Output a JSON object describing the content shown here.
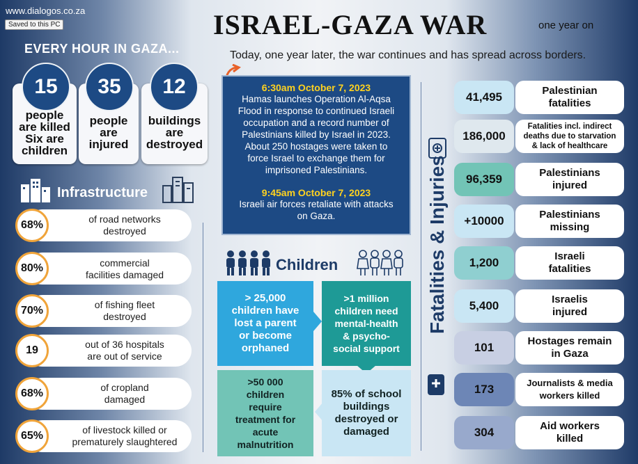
{
  "header": {
    "site_url": "www.dialogos.co.za",
    "saved_label": "Saved to this PC",
    "title": "ISRAEL-GAZA WAR",
    "title_sub": "one year on",
    "tagline": "Today, one year later, the war continues and has spread across borders."
  },
  "every_hour": {
    "heading": "EVERY HOUR IN GAZA...",
    "cards": [
      {
        "number": "15",
        "lines": [
          "people",
          "are killed",
          "Six are",
          "children"
        ]
      },
      {
        "number": "35",
        "lines": [
          "people",
          "are",
          "injured"
        ]
      },
      {
        "number": "12",
        "lines": [
          "buildings",
          "are",
          "destroyed"
        ]
      }
    ]
  },
  "infrastructure": {
    "heading": "Infrastructure",
    "items": [
      {
        "value": "68%",
        "lines": [
          "of road networks",
          "destroyed"
        ]
      },
      {
        "value": "80%",
        "lines": [
          "commercial",
          "facilities damaged"
        ]
      },
      {
        "value": "70%",
        "lines": [
          "of fishing fleet",
          "destroyed"
        ]
      },
      {
        "value": "19",
        "lines": [
          "out of 36 hospitals",
          "are out of service"
        ]
      },
      {
        "value": "68%",
        "lines": [
          "of cropland",
          "damaged"
        ]
      },
      {
        "value": "65%",
        "lines": [
          "of livestock killed or",
          "prematurely slaughtered"
        ]
      }
    ]
  },
  "timeline": {
    "event1_time": "6:30am October 7, 2023",
    "event1_lines": [
      "Hamas launches Operation Al-Aqsa",
      "Flood in response to continued Israeli",
      "occupation and a record number of",
      "Palestinians killed by Israel in 2023.",
      "About 250 hostages were taken to",
      "force Israel to exchange them for",
      "imprisoned Palestinians."
    ],
    "event2_time": "9:45am October 7, 2023",
    "event2_lines": [
      "Israeli air forces retaliate with attacks",
      "on Gaza."
    ]
  },
  "children": {
    "heading": "Children",
    "boxes": [
      {
        "lines": [
          "> 25,000",
          "children have",
          "lost a parent",
          "or become",
          "orphaned"
        ]
      },
      {
        "lines": [
          ">1 million",
          "children need",
          "mental-health",
          "& psycho-",
          "social support"
        ]
      },
      {
        "lines": [
          ">50 000",
          "children",
          "require",
          "treatment for",
          "acute",
          "malnutrition"
        ]
      },
      {
        "lines": [
          "85% of school",
          "buildings",
          "destroyed or",
          "damaged"
        ]
      }
    ]
  },
  "fatalities": {
    "heading": "Fatalities & Injuries",
    "items": [
      {
        "number": "41,495",
        "lines": [
          "Palestinian",
          "fatalities"
        ]
      },
      {
        "number": "186,000",
        "lines": [
          "Fatalities incl. indirect",
          "deaths due to starvation",
          "& lack of healthcare"
        ]
      },
      {
        "number": "96,359",
        "lines": [
          "Palestinians",
          "injured"
        ]
      },
      {
        "number": "+10000",
        "lines": [
          "Palestinians",
          "missing"
        ]
      },
      {
        "number": "1,200",
        "lines": [
          "Israeli",
          "fatalities"
        ]
      },
      {
        "number": "5,400",
        "lines": [
          "Israelis",
          "injured"
        ]
      },
      {
        "number": "101",
        "lines": [
          "Hostages remain",
          "in Gaza"
        ]
      },
      {
        "number": "173",
        "lines": [
          "Journalists & media",
          "workers killed"
        ]
      },
      {
        "number": "304",
        "lines": [
          "Aid workers",
          "killed"
        ]
      }
    ]
  },
  "colors": {
    "navy": "#1d4a84",
    "orange_ring": "#f0a43a",
    "timeline_yellow": "#ffd21f",
    "children_blue": "#2fa7dd",
    "children_teal": "#1e9a96",
    "children_green": "#72c4b6",
    "children_lightblue": "#c9e6f4"
  }
}
